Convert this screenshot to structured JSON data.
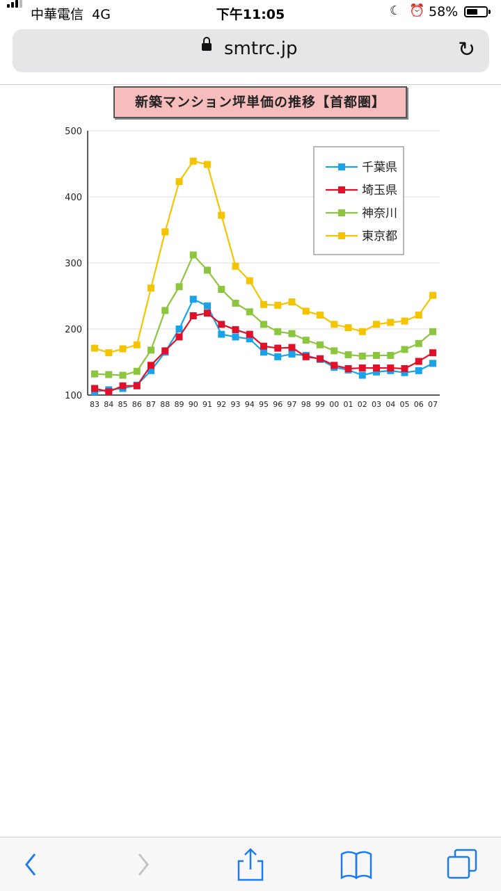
{
  "status_bar": {
    "carrier": "中華電信",
    "network": "4G",
    "time": "下午11:05",
    "battery_pct": "58%",
    "battery_level": 0.58
  },
  "browser": {
    "url": "smtrc.jp"
  },
  "colors": {
    "chiba": "#1aa3e8",
    "saitama": "#e0102a",
    "kanagawa": "#8cc63e",
    "tokyo": "#f5c400"
  },
  "chart_data": {
    "type": "line",
    "title": "新築マンション坪単価の推移【首都圏】",
    "xlabel": "",
    "ylabel": "",
    "ylim": [
      100,
      500
    ],
    "yticks": [
      100,
      200,
      300,
      400,
      500
    ],
    "grid": true,
    "legend_position": "top-right",
    "categories": [
      "83",
      "84",
      "85",
      "86",
      "87",
      "88",
      "89",
      "90",
      "91",
      "92",
      "93",
      "94",
      "95",
      "96",
      "97",
      "98",
      "99",
      "00",
      "01",
      "02",
      "03",
      "04",
      "05",
      "06",
      "07"
    ],
    "series": [
      {
        "name": "千葉県",
        "color": "#1aa3e8",
        "values": [
          105,
          108,
          110,
          115,
          137,
          165,
          200,
          245,
          235,
          192,
          188,
          185,
          165,
          158,
          162,
          160,
          154,
          142,
          138,
          130,
          135,
          137,
          134,
          137,
          148
        ]
      },
      {
        "name": "埼玉県",
        "color": "#e0102a",
        "values": [
          110,
          105,
          114,
          114,
          145,
          167,
          188,
          220,
          224,
          207,
          199,
          192,
          174,
          171,
          172,
          158,
          155,
          145,
          140,
          141,
          141,
          141,
          140,
          151,
          164
        ]
      },
      {
        "name": "神奈川",
        "color": "#8cc63e",
        "values": [
          132,
          131,
          130,
          136,
          168,
          228,
          264,
          312,
          289,
          260,
          239,
          226,
          207,
          196,
          193,
          183,
          176,
          167,
          161,
          159,
          160,
          160,
          169,
          178,
          196
        ]
      },
      {
        "name": "東京都",
        "color": "#f5c400",
        "values": [
          171,
          164,
          170,
          176,
          262,
          347,
          423,
          454,
          449,
          372,
          295,
          273,
          237,
          236,
          241,
          227,
          221,
          207,
          202,
          196,
          207,
          210,
          212,
          221,
          251
        ]
      }
    ]
  }
}
